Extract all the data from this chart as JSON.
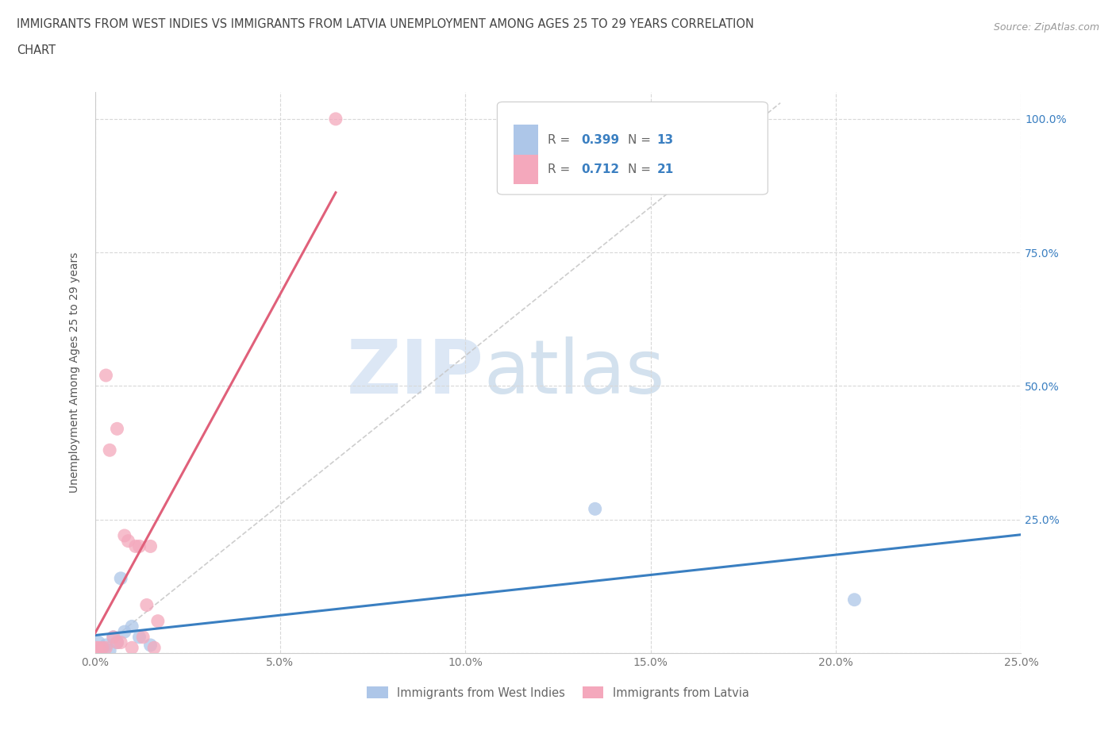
{
  "title_line1": "IMMIGRANTS FROM WEST INDIES VS IMMIGRANTS FROM LATVIA UNEMPLOYMENT AMONG AGES 25 TO 29 YEARS CORRELATION",
  "title_line2": "CHART",
  "source_text": "Source: ZipAtlas.com",
  "ylabel": "Unemployment Among Ages 25 to 29 years",
  "xlim": [
    0.0,
    0.25
  ],
  "ylim": [
    0.0,
    1.05
  ],
  "xtick_positions": [
    0.0,
    0.05,
    0.1,
    0.15,
    0.2,
    0.25
  ],
  "xtick_labels": [
    "0.0%",
    "5.0%",
    "10.0%",
    "15.0%",
    "20.0%",
    "25.0%"
  ],
  "ytick_positions": [
    0.0,
    0.25,
    0.5,
    0.75,
    1.0
  ],
  "ytick_labels": [
    "",
    "25.0%",
    "50.0%",
    "75.0%",
    "100.0%"
  ],
  "west_indies_x": [
    0.001,
    0.002,
    0.003,
    0.004,
    0.005,
    0.006,
    0.007,
    0.008,
    0.01,
    0.012,
    0.015,
    0.135,
    0.205
  ],
  "west_indies_y": [
    0.02,
    0.01,
    0.015,
    0.005,
    0.03,
    0.02,
    0.14,
    0.04,
    0.05,
    0.03,
    0.015,
    0.27,
    0.1
  ],
  "latvia_x": [
    0.0005,
    0.001,
    0.002,
    0.003,
    0.003,
    0.004,
    0.005,
    0.006,
    0.006,
    0.007,
    0.008,
    0.009,
    0.01,
    0.011,
    0.012,
    0.013,
    0.014,
    0.015,
    0.016,
    0.017,
    0.065
  ],
  "latvia_y": [
    0.01,
    0.01,
    0.01,
    0.01,
    0.52,
    0.38,
    0.03,
    0.02,
    0.42,
    0.02,
    0.22,
    0.21,
    0.01,
    0.2,
    0.2,
    0.03,
    0.09,
    0.2,
    0.01,
    0.06,
    1.0
  ],
  "west_indies_color": "#adc6e8",
  "latvia_color": "#f4a8bc",
  "west_indies_line_color": "#3a7fc1",
  "latvia_line_color": "#e0607a",
  "trendline_gray_color": "#c8c8c8",
  "R_west_indies": 0.399,
  "N_west_indies": 13,
  "R_latvia": 0.712,
  "N_latvia": 21,
  "watermark_zip_color": "#c5d8ef",
  "watermark_atlas_color": "#a8c4de",
  "background_color": "#ffffff",
  "grid_color": "#d8d8d8",
  "legend_box_color": "#f0f0f0",
  "legend_r_n_color": "#3a7fc1",
  "legend_label_color": "#666666"
}
